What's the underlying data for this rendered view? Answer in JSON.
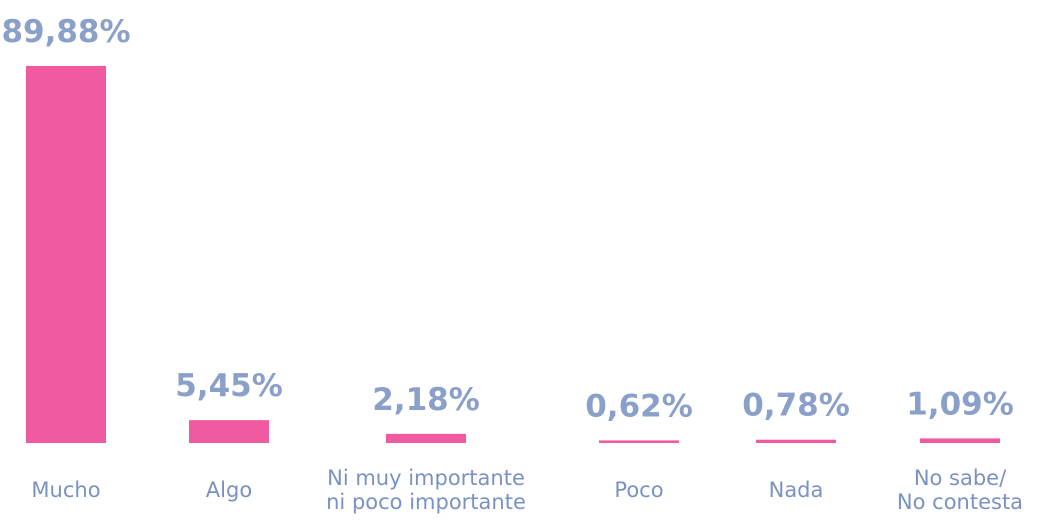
{
  "chart_data": {
    "type": "bar",
    "categories": [
      "Mucho",
      "Algo",
      "Ni muy importante\nni poco importante",
      "Poco",
      "Nada",
      "No sabe/\nNo contesta"
    ],
    "values": [
      89.88,
      5.45,
      2.18,
      0.62,
      0.78,
      1.09
    ],
    "value_labels": [
      "89,88%",
      "5,45%",
      "2,18%",
      "0,62%",
      "0,78%",
      "1,09%"
    ],
    "color": "#f05aa0"
  }
}
